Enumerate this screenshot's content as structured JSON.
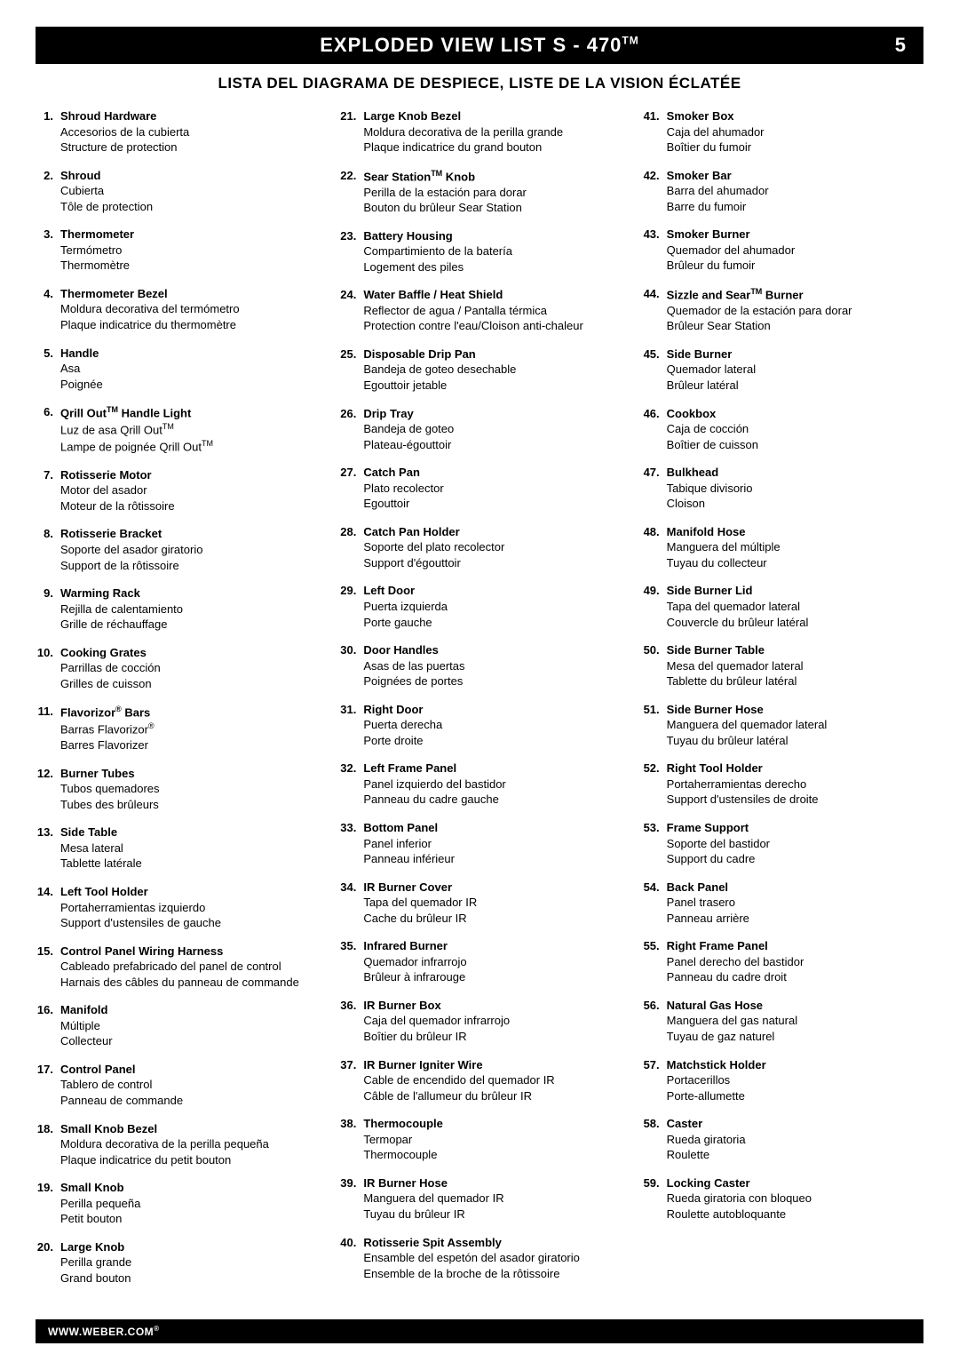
{
  "header": {
    "title_pre": "EXPLODED VIEW LIST S - 470",
    "title_sup": "TM",
    "page_number": "5"
  },
  "subtitle": "LISTA DEL DIAGRAMA DE DESPIECE, LISTE DE LA VISION ÉCLATÉE",
  "footer": {
    "text": "WWW.WEBER.COM",
    "sup": "®"
  },
  "columns": [
    [
      {
        "n": "1.",
        "en": "Shroud Hardware",
        "es": "Accesorios de la cubierta",
        "fr": "Structure de protection"
      },
      {
        "n": "2.",
        "en": "Shroud",
        "es": "Cubierta",
        "fr": "Tôle de protection"
      },
      {
        "n": "3.",
        "en": "Thermometer",
        "es": "Termómetro",
        "fr": "Thermomètre"
      },
      {
        "n": "4.",
        "en": "Thermometer Bezel",
        "es": "Moldura decorativa del termómetro",
        "fr": "Plaque indicatrice du thermomètre"
      },
      {
        "n": "5.",
        "en": "Handle",
        "es": "Asa",
        "fr": "Poignée"
      },
      {
        "n": "6.",
        "en_html": "Qrill Out<sup>TM</sup> Handle Light",
        "es_html": "Luz de asa Qrill Out<sup>TM</sup>",
        "fr_html": "Lampe de poignée Qrill Out<sup>TM</sup>"
      },
      {
        "n": "7.",
        "en": "Rotisserie Motor",
        "es": "Motor del asador",
        "fr": "Moteur de la rôtissoire"
      },
      {
        "n": "8.",
        "en": "Rotisserie Bracket",
        "es": "Soporte del asador giratorio",
        "fr": "Support de la rôtissoire"
      },
      {
        "n": "9.",
        "en": "Warming Rack",
        "es": "Rejilla de calentamiento",
        "fr": "Grille de réchauffage"
      },
      {
        "n": "10.",
        "en": "Cooking Grates",
        "es": "Parrillas de cocción",
        "fr": "Grilles de cuisson"
      },
      {
        "n": "11.",
        "en_html": "Flavorizor<sup>®</sup> Bars",
        "es_html": "Barras Flavorizor<sup>®</sup>",
        "fr": "Barres Flavorizer"
      },
      {
        "n": "12.",
        "en": "Burner Tubes",
        "es": "Tubos quemadores",
        "fr": "Tubes des brûleurs"
      },
      {
        "n": "13.",
        "en": "Side Table",
        "es": "Mesa lateral",
        "fr": "Tablette latérale"
      },
      {
        "n": "14.",
        "en": "Left Tool Holder",
        "es": "Portaherramientas izquierdo",
        "fr": "Support d'ustensiles de gauche"
      },
      {
        "n": "15.",
        "en": "Control Panel Wiring Harness",
        "es": "Cableado prefabricado del panel de control",
        "fr": "Harnais des câbles du panneau de commande"
      },
      {
        "n": "16.",
        "en": "Manifold",
        "es": "Múltiple",
        "fr": "Collecteur"
      },
      {
        "n": "17.",
        "en": "Control Panel",
        "es": "Tablero de control",
        "fr": "Panneau de commande"
      },
      {
        "n": "18.",
        "en": "Small Knob Bezel",
        "es": "Moldura decorativa de la perilla pequeña",
        "fr": "Plaque indicatrice du petit bouton"
      },
      {
        "n": "19.",
        "en": "Small Knob",
        "es": "Perilla pequeña",
        "fr": "Petit bouton"
      },
      {
        "n": "20.",
        "en": "Large Knob",
        "es": "Perilla grande",
        "fr": "Grand bouton"
      }
    ],
    [
      {
        "n": "21.",
        "en": "Large Knob Bezel",
        "es": "Moldura decorativa de la perilla grande",
        "fr": "Plaque indicatrice du grand bouton"
      },
      {
        "n": "22.",
        "en_html": "Sear Station<sup>TM</sup> Knob",
        "es": "Perilla de la estación para dorar",
        "fr": "Bouton du brûleur Sear Station"
      },
      {
        "n": "23.",
        "en": "Battery Housing",
        "es": "Compartimiento de la batería",
        "fr": "Logement des piles"
      },
      {
        "n": "24.",
        "en": "Water Baffle / Heat Shield",
        "es": "Reflector de agua / Pantalla térmica",
        "fr": "Protection contre l'eau/Cloison anti-chaleur"
      },
      {
        "n": "25.",
        "en": "Disposable Drip Pan",
        "es": "Bandeja de goteo desechable",
        "fr": "Egouttoir jetable"
      },
      {
        "n": "26.",
        "en": "Drip Tray",
        "es": "Bandeja de goteo",
        "fr": "Plateau-égouttoir"
      },
      {
        "n": "27.",
        "en": "Catch Pan",
        "es": "Plato recolector",
        "fr": "Egouttoir"
      },
      {
        "n": "28.",
        "en": "Catch Pan Holder",
        "es": "Soporte del plato recolector",
        "fr": "Support d'égouttoir"
      },
      {
        "n": "29.",
        "en": "Left Door",
        "es": "Puerta izquierda",
        "fr": "Porte gauche"
      },
      {
        "n": "30.",
        "en": "Door Handles",
        "es": "Asas de las puertas",
        "fr": "Poignées de portes"
      },
      {
        "n": "31.",
        "en": "Right Door",
        "es": "Puerta derecha",
        "fr": "Porte droite"
      },
      {
        "n": "32.",
        "en": "Left Frame Panel",
        "es": "Panel izquierdo del bastidor",
        "fr": "Panneau du cadre gauche"
      },
      {
        "n": "33.",
        "en": "Bottom Panel",
        "es": "Panel inferior",
        "fr": "Panneau inférieur"
      },
      {
        "n": "34.",
        "en": "IR Burner Cover",
        "es": "Tapa del quemador IR",
        "fr": "Cache du brûleur IR"
      },
      {
        "n": "35.",
        "en": "Infrared Burner",
        "es": "Quemador infrarrojo",
        "fr": "Brûleur à infrarouge"
      },
      {
        "n": "36.",
        "en": "IR Burner Box",
        "es": "Caja del quemador infrarrojo",
        "fr": "Boîtier du brûleur IR"
      },
      {
        "n": "37.",
        "en": "IR Burner Igniter Wire",
        "es": "Cable de encendido del quemador IR",
        "fr": "Câble de l'allumeur du brûleur IR"
      },
      {
        "n": "38.",
        "en": "Thermocouple",
        "es": "Termopar",
        "fr": "Thermocouple"
      },
      {
        "n": "39.",
        "en": "IR Burner Hose",
        "es": "Manguera del quemador IR",
        "fr": "Tuyau du brûleur IR"
      },
      {
        "n": "40.",
        "en": "Rotisserie Spit Assembly",
        "es": "Ensamble del espetón del asador giratorio",
        "fr": "Ensemble de la broche de la rôtissoire"
      }
    ],
    [
      {
        "n": "41.",
        "en": "Smoker Box",
        "es": "Caja del ahumador",
        "fr": "Boîtier du fumoir"
      },
      {
        "n": "42.",
        "en": "Smoker Bar",
        "es": "Barra del ahumador",
        "fr": "Barre du fumoir"
      },
      {
        "n": "43.",
        "en": "Smoker Burner",
        "es": "Quemador del ahumador",
        "fr": "Brûleur du fumoir"
      },
      {
        "n": "44.",
        "en_html": "Sizzle and Sear<sup>TM</sup> Burner",
        "es": "Quemador de la estación para dorar",
        "fr": "Brûleur Sear Station"
      },
      {
        "n": "45.",
        "en": "Side Burner",
        "es": "Quemador lateral",
        "fr": "Brûleur latéral"
      },
      {
        "n": "46.",
        "en": "Cookbox",
        "es": "Caja de cocción",
        "fr": "Boîtier de cuisson"
      },
      {
        "n": "47.",
        "en": "Bulkhead",
        "es": "Tabique divisorio",
        "fr": "Cloison"
      },
      {
        "n": "48.",
        "en": "Manifold Hose",
        "es": "Manguera del múltiple",
        "fr": "Tuyau du collecteur"
      },
      {
        "n": "49.",
        "en": "Side Burner Lid",
        "es": "Tapa del quemador lateral",
        "fr": "Couvercle du brûleur latéral"
      },
      {
        "n": "50.",
        "en": "Side Burner Table",
        "es": "Mesa del quemador lateral",
        "fr": "Tablette du brûleur latéral"
      },
      {
        "n": "51.",
        "en": "Side Burner Hose",
        "es": "Manguera del quemador lateral",
        "fr": "Tuyau du brûleur latéral"
      },
      {
        "n": "52.",
        "en": "Right Tool Holder",
        "es": "Portaherramientas derecho",
        "fr": "Support d'ustensiles de droite"
      },
      {
        "n": "53.",
        "en": "Frame Support",
        "es": "Soporte del bastidor",
        "fr": "Support du cadre"
      },
      {
        "n": "54.",
        "en": "Back Panel",
        "es": "Panel trasero",
        "fr": "Panneau arrière"
      },
      {
        "n": "55.",
        "en": "Right Frame Panel",
        "es": "Panel derecho del bastidor",
        "fr": "Panneau du cadre droit"
      },
      {
        "n": "56.",
        "en": "Natural Gas Hose",
        "es": "Manguera del gas natural",
        "fr": "Tuyau de gaz naturel"
      },
      {
        "n": "57.",
        "en": "Matchstick Holder",
        "es": "Portacerillos",
        "fr": "Porte-allumette"
      },
      {
        "n": "58.",
        "en": "Caster",
        "es": "Rueda giratoria",
        "fr": "Roulette"
      },
      {
        "n": "59.",
        "en": "Locking Caster",
        "es": "Rueda giratoria con bloqueo",
        "fr": "Roulette autobloquante"
      }
    ]
  ]
}
